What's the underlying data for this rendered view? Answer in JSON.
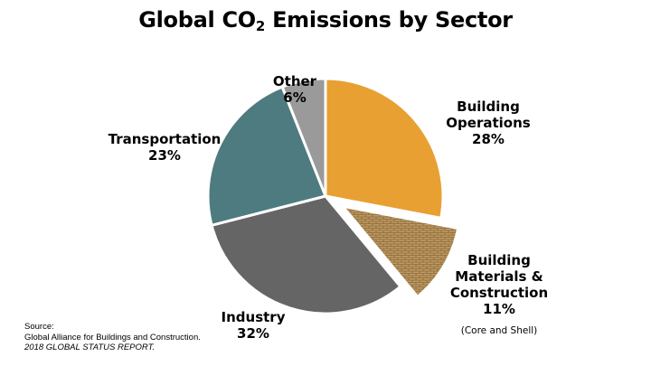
{
  "chart_data": {
    "type": "pie",
    "title": "Global CO2 Emissions by Sector",
    "title_main": "Global CO",
    "title_sub": "2",
    "title_rest": " Emissions by Sector",
    "start_angle": "12 o'clock",
    "direction": "clockwise",
    "slices": [
      {
        "label": "Building Operations",
        "value": 28,
        "display": "28%",
        "color": "#E8A032",
        "exploded": false
      },
      {
        "label": "Building Materials & Construction",
        "value": 11,
        "display": "11%",
        "color": "#9B7A4A",
        "pattern": "brick",
        "exploded": true,
        "note": "(Core and Shell)"
      },
      {
        "label": "Industry",
        "value": 32,
        "display": "32%",
        "color": "#656565",
        "exploded": false
      },
      {
        "label": "Transportation",
        "value": 23,
        "display": "23%",
        "color": "#4E7B80",
        "exploded": false
      },
      {
        "label": "Other",
        "value": 6,
        "display": "6%",
        "color": "#9A9A9A",
        "exploded": false
      }
    ],
    "legend": "none (data labels)"
  },
  "labels": {
    "building_ops_l1": "Building",
    "building_ops_l2": "Operations",
    "building_ops_pct": "28%",
    "materials_l1": "Building",
    "materials_l2": "Materials &",
    "materials_l3": "Construction",
    "materials_pct": "11%",
    "materials_note": "(Core and Shell)",
    "industry": "Industry",
    "industry_pct": "32%",
    "transportation": "Transportation",
    "transportation_pct": "23%",
    "other": "Other",
    "other_pct": "6%"
  },
  "source": {
    "line1": "Source:",
    "line2": "Global Alliance for Buildings and Construction.",
    "line3": "2018 GLOBAL STATUS REPORT."
  }
}
